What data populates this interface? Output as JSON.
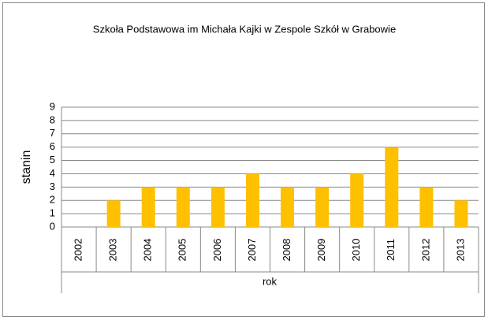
{
  "chart_data": {
    "type": "bar",
    "title": "Szkoła Podstawowa im Michała Kajki w Zespole Szkół w Grabowie",
    "categories": [
      "2002",
      "2003",
      "2004",
      "2005",
      "2006",
      "2007",
      "2008",
      "2009",
      "2010",
      "2011",
      "2012",
      "2013"
    ],
    "values": [
      0,
      2,
      3,
      3,
      3,
      4,
      3,
      3,
      4,
      6,
      3,
      2
    ],
    "color": "#ffc000",
    "ylim": [
      0,
      9
    ],
    "yticks": [
      0,
      1,
      2,
      3,
      4,
      5,
      6,
      7,
      8,
      9
    ],
    "grid": true,
    "xlabel": "rok",
    "ylabel": "stanin"
  }
}
